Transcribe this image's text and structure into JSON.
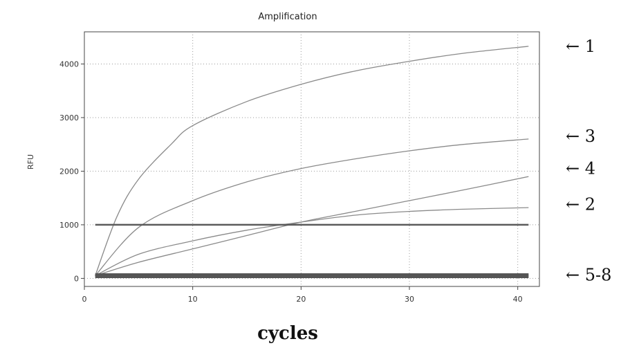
{
  "chart_data": {
    "type": "line",
    "title": "Amplification",
    "xlabel": "cycles",
    "ylabel": "RFU",
    "xlim": [
      0,
      42
    ],
    "ylim": [
      -150,
      4600
    ],
    "xticks": [
      0,
      10,
      20,
      30,
      40
    ],
    "yticks": [
      0,
      1000,
      2000,
      3000,
      4000
    ],
    "grid": true,
    "series": [
      {
        "name": "",
        "x": [
          1,
          3,
          5,
          8,
          10,
          15,
          20,
          25,
          30,
          35,
          41
        ],
        "values": [
          50,
          1150,
          1850,
          2500,
          2850,
          3300,
          3620,
          3870,
          4050,
          4200,
          4330
        ]
      },
      {
        "name": "",
        "x": [
          1,
          5,
          10,
          15,
          20,
          25,
          30,
          35,
          41
        ],
        "values": [
          50,
          950,
          1450,
          1800,
          2050,
          2230,
          2380,
          2500,
          2600
        ]
      },
      {
        "name": "",
        "x": [
          1,
          5,
          10,
          15,
          20,
          25,
          30,
          35,
          41
        ],
        "values": [
          50,
          450,
          700,
          900,
          1050,
          1180,
          1250,
          1290,
          1320
        ]
      },
      {
        "name": "",
        "x": [
          1,
          5,
          10,
          15,
          20,
          25,
          30,
          35,
          41
        ],
        "values": [
          50,
          300,
          550,
          800,
          1050,
          1250,
          1450,
          1650,
          1900
        ]
      },
      {
        "name": "",
        "x": [
          1,
          41
        ],
        "values": [
          1000,
          1000
        ]
      },
      {
        "name": "",
        "x": [
          1,
          41
        ],
        "values": [
          40,
          40
        ]
      },
      {
        "name": "",
        "x": [
          1,
          41
        ],
        "values": [
          60,
          60
        ]
      },
      {
        "name": "",
        "x": [
          1,
          41
        ],
        "values": [
          80,
          80
        ]
      },
      {
        "name": "",
        "x": [
          1,
          41
        ],
        "values": [
          20,
          20
        ]
      }
    ],
    "annotations": [
      {
        "label": "← 1",
        "y": 4330
      },
      {
        "label": "← 3",
        "y": 2650
      },
      {
        "label": "← 4",
        "y": 2050
      },
      {
        "label": "← 2",
        "y": 1380
      },
      {
        "label": "← 5-8",
        "y": 60
      }
    ]
  },
  "colors": {
    "curve": "#8a8a8a",
    "threshold": "#5a5a5a",
    "baseline": "#555555",
    "grid": "#9a9a9a"
  }
}
